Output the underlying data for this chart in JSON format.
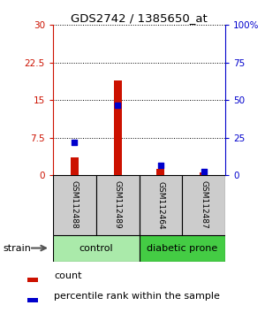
{
  "title": "GDS2742 / 1385650_at",
  "samples": [
    "GSM112488",
    "GSM112489",
    "GSM112464",
    "GSM112487"
  ],
  "count_values": [
    3.5,
    19.0,
    1.2,
    0.5
  ],
  "percentile_values": [
    22.0,
    46.5,
    6.5,
    2.5
  ],
  "groups": [
    {
      "label": "control",
      "indices": [
        0,
        1
      ],
      "color": "#aaeaaa"
    },
    {
      "label": "diabetic prone",
      "indices": [
        2,
        3
      ],
      "color": "#44cc44"
    }
  ],
  "group_label": "strain",
  "ylim_left": [
    0,
    30
  ],
  "ylim_right": [
    0,
    100
  ],
  "yticks_left": [
    0,
    7.5,
    15,
    22.5,
    30
  ],
  "yticks_right": [
    0,
    25,
    50,
    75,
    100
  ],
  "yticklabels_left": [
    "0",
    "7.5",
    "15",
    "22.5",
    "30"
  ],
  "yticklabels_right": [
    "0",
    "25",
    "50",
    "75",
    "100%"
  ],
  "bar_color": "#cc1100",
  "dot_color": "#0000cc",
  "legend_count_label": "count",
  "legend_percentile_label": "percentile rank within the sample",
  "background_color": "#ffffff",
  "bar_width": 0.18,
  "dot_size": 20,
  "sample_box_color": "#cccccc",
  "spine_color": "#000000"
}
